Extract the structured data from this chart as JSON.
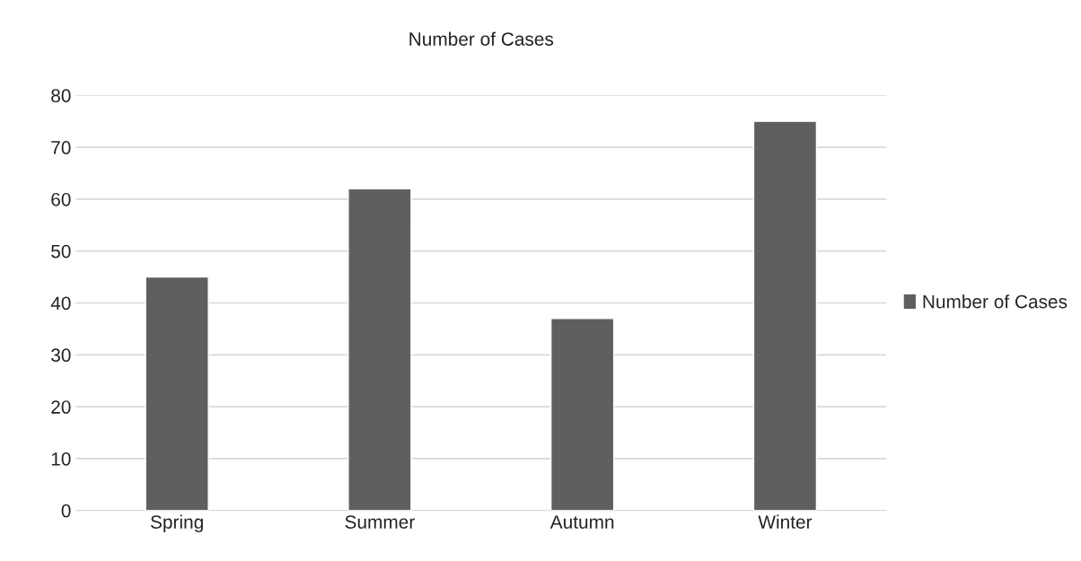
{
  "chart_data": {
    "type": "bar",
    "title": "Number of Cases",
    "categories": [
      "Spring",
      "Summer",
      "Autumn",
      "Winter"
    ],
    "series": [
      {
        "name": "Number of Cases",
        "color": "#5f5f5f",
        "values": [
          45,
          62,
          37,
          75
        ]
      }
    ],
    "ylim": [
      0,
      80
    ],
    "yticks": [
      0,
      10,
      20,
      30,
      40,
      50,
      60,
      70,
      80
    ],
    "grid": "y",
    "legend": "right"
  }
}
